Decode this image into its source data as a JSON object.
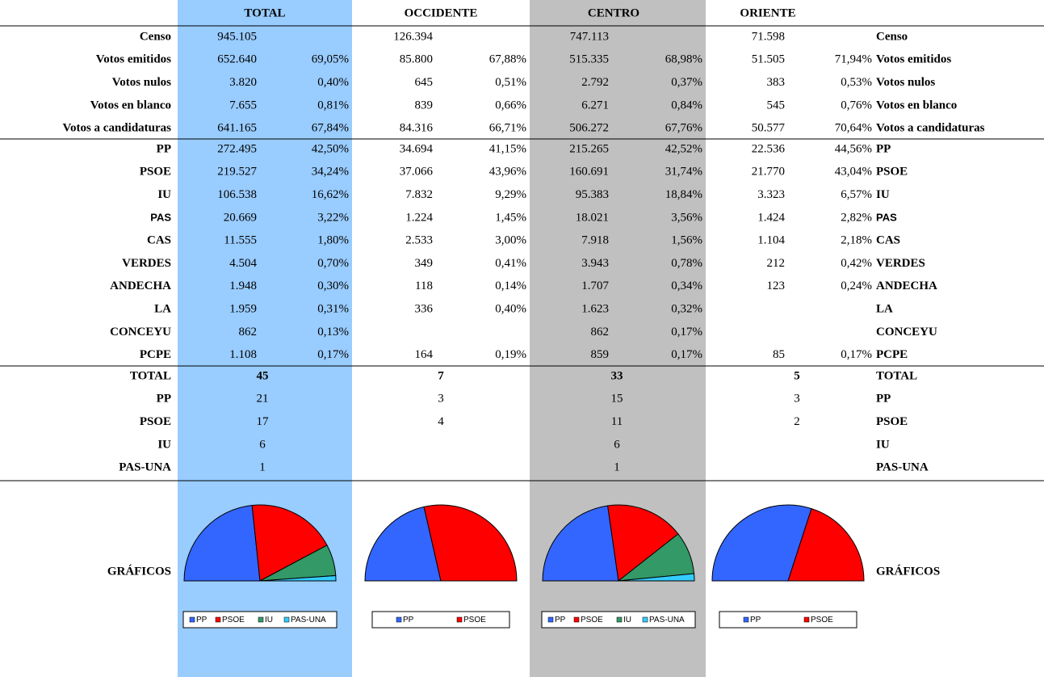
{
  "blocks": [
    "TOTAL",
    "OCCIDENTE",
    "CENTRO",
    "ORIENTE"
  ],
  "summary": [
    {
      "label": "Censo",
      "cells": [
        [
          "945.105",
          null
        ],
        [
          "126.394",
          null
        ],
        [
          "747.113",
          null
        ],
        [
          "71.598",
          null
        ]
      ]
    },
    {
      "label": "Votos emitidos",
      "cells": [
        [
          "652.640",
          "69,05%"
        ],
        [
          "85.800",
          "67,88%"
        ],
        [
          "515.335",
          "68,98%"
        ],
        [
          "51.505",
          "71,94%"
        ]
      ]
    },
    {
      "label": "Votos nulos",
      "cells": [
        [
          "3.820",
          "0,40%"
        ],
        [
          "645",
          "0,51%"
        ],
        [
          "2.792",
          "0,37%"
        ],
        [
          "383",
          "0,53%"
        ]
      ]
    },
    {
      "label": "Votos en blanco",
      "cells": [
        [
          "7.655",
          "0,81%"
        ],
        [
          "839",
          "0,66%"
        ],
        [
          "6.271",
          "0,84%"
        ],
        [
          "545",
          "0,76%"
        ]
      ]
    },
    {
      "label": "Votos a candidaturas",
      "cells": [
        [
          "641.165",
          "67,84%"
        ],
        [
          "84.316",
          "66,71%"
        ],
        [
          "506.272",
          "67,76%"
        ],
        [
          "50.577",
          "70,64%"
        ]
      ]
    }
  ],
  "parties": [
    {
      "label": "PP",
      "cells": [
        [
          "272.495",
          "42,50%"
        ],
        [
          "34.694",
          "41,15%"
        ],
        [
          "215.265",
          "42,52%"
        ],
        [
          "22.536",
          "44,56%"
        ]
      ]
    },
    {
      "label": "PSOE",
      "cells": [
        [
          "219.527",
          "34,24%"
        ],
        [
          "37.066",
          "43,96%"
        ],
        [
          "160.691",
          "31,74%"
        ],
        [
          "21.770",
          "43,04%"
        ]
      ]
    },
    {
      "label": "IU",
      "cells": [
        [
          "106.538",
          "16,62%"
        ],
        [
          "7.832",
          "9,29%"
        ],
        [
          "95.383",
          "18,84%"
        ],
        [
          "3.323",
          "6,57%"
        ]
      ]
    },
    {
      "label": "PAS",
      "cells": [
        [
          "20.669",
          "3,22%"
        ],
        [
          "1.224",
          "1,45%"
        ],
        [
          "18.021",
          "3,56%"
        ],
        [
          "1.424",
          "2,82%"
        ]
      ]
    },
    {
      "label": "CAS",
      "cells": [
        [
          "11.555",
          "1,80%"
        ],
        [
          "2.533",
          "3,00%"
        ],
        [
          "7.918",
          "1,56%"
        ],
        [
          "1.104",
          "2,18%"
        ]
      ]
    },
    {
      "label": "VERDES",
      "cells": [
        [
          "4.504",
          "0,70%"
        ],
        [
          "349",
          "0,41%"
        ],
        [
          "3.943",
          "0,78%"
        ],
        [
          "212",
          "0,42%"
        ]
      ]
    },
    {
      "label": "ANDECHA",
      "cells": [
        [
          "1.948",
          "0,30%"
        ],
        [
          "118",
          "0,14%"
        ],
        [
          "1.707",
          "0,34%"
        ],
        [
          "123",
          "0,24%"
        ]
      ]
    },
    {
      "label": "LA",
      "cells": [
        [
          "1.959",
          "0,31%"
        ],
        [
          "336",
          "0,40%"
        ],
        [
          "1.623",
          "0,32%"
        ],
        null
      ]
    },
    {
      "label": "CONCEYU",
      "cells": [
        [
          "862",
          "0,13%"
        ],
        null,
        [
          "862",
          "0,17%"
        ],
        null
      ]
    },
    {
      "label": "PCPE",
      "cells": [
        [
          "1.108",
          "0,17%"
        ],
        [
          "164",
          "0,19%"
        ],
        [
          "859",
          "0,17%"
        ],
        [
          "85",
          "0,17%"
        ]
      ]
    }
  ],
  "seats": [
    {
      "label": "TOTAL",
      "values": [
        45,
        7,
        33,
        5
      ]
    },
    {
      "label": "PP",
      "values": [
        21,
        3,
        15,
        3
      ]
    },
    {
      "label": "PSOE",
      "values": [
        17,
        4,
        11,
        2
      ]
    },
    {
      "label": "IU",
      "values": [
        6,
        null,
        6,
        null
      ]
    },
    {
      "label": "PAS-UNA",
      "values": [
        1,
        null,
        1,
        null
      ]
    }
  ],
  "charts": {
    "label": "GRÁFICOS",
    "type": "pie",
    "colors": [
      "#3366ff",
      "#ff0000",
      "#339966",
      "#33ccff"
    ]
  }
}
